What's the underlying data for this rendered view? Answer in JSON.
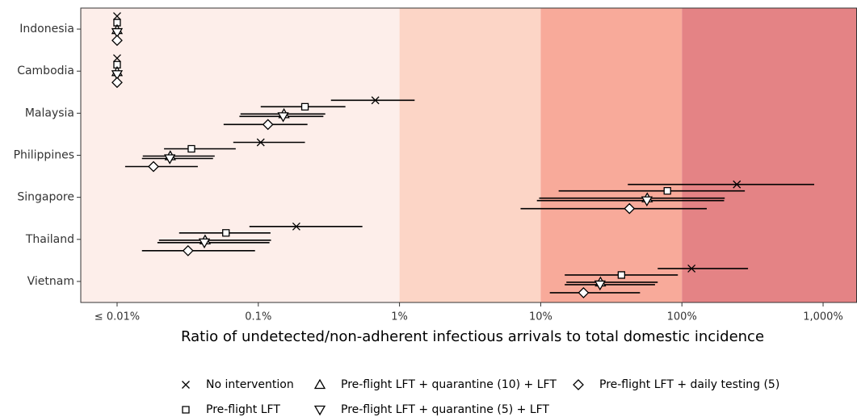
{
  "chart_data": {
    "type": "dot-range",
    "x_label": "Ratio of undetected/non-adherent infectious arrivals to total domestic incidence",
    "x_scale": "log",
    "xlim": [
      0.00553,
      1738
    ],
    "xticks": [
      {
        "value": 0.01,
        "label": "≤ 0.01%"
      },
      {
        "value": 0.1,
        "label": "0.1%"
      },
      {
        "value": 1,
        "label": "1%"
      },
      {
        "value": 10,
        "label": "10%"
      },
      {
        "value": 100,
        "label": "100%"
      },
      {
        "value": 1000,
        "label": "1,000%"
      }
    ],
    "bands": [
      {
        "from": 0.00553,
        "to": 1,
        "color": "#fdeeea"
      },
      {
        "from": 1,
        "to": 10,
        "color": "#fcd5c6"
      },
      {
        "from": 10,
        "to": 100,
        "color": "#f8aa9a"
      },
      {
        "from": 100,
        "to": 1738,
        "color": "#e48385"
      }
    ],
    "categories": [
      "Indonesia",
      "Cambodia",
      "Malaysia",
      "Philippines",
      "Singapore",
      "Thailand",
      "Vietnam"
    ],
    "series": [
      {
        "name": "No intervention",
        "marker": "x",
        "color": "#000000",
        "values": [
          0.01,
          0.01,
          0.674,
          0.104,
          245,
          0.186,
          117
        ],
        "lower": [
          null,
          null,
          0.327,
          0.0665,
          41.4,
          0.0865,
          67.4
        ],
        "upper": [
          null,
          null,
          1.28,
          0.214,
          865,
          0.546,
          294
        ]
      },
      {
        "name": "Pre-flight LFT",
        "marker": "square",
        "color": "#000000",
        "values": [
          0.01,
          0.01,
          0.214,
          0.0336,
          78.9,
          0.059,
          37.3
        ],
        "lower": [
          null,
          null,
          0.104,
          0.0215,
          13.4,
          0.0275,
          14.8
        ],
        "upper": [
          null,
          null,
          0.414,
          0.0692,
          279,
          0.122,
          93.6
        ]
      },
      {
        "name": "Pre-flight LFT + quarantine (10) + LFT",
        "marker": "triangle-up",
        "color": "#000000",
        "values": [
          0.01,
          0.01,
          0.152,
          0.0238,
          56.8,
          0.042,
          26.5
        ],
        "lower": [
          null,
          null,
          0.0748,
          0.0152,
          9.75,
          0.0198,
          15.2
        ],
        "upper": [
          null,
          null,
          0.298,
          0.0491,
          201,
          0.123,
          67.4
        ]
      },
      {
        "name": "Pre-flight LFT + quarantine (5) + LFT",
        "marker": "triangle-down",
        "color": "#000000",
        "values": [
          0.01,
          0.01,
          0.15,
          0.0236,
          56.5,
          0.0415,
          26.3
        ],
        "lower": [
          null,
          null,
          0.0735,
          0.015,
          9.4,
          0.0193,
          14.8
        ],
        "upper": [
          null,
          null,
          0.289,
          0.0478,
          199,
          0.12,
          64.5
        ]
      },
      {
        "name": "Pre-flight LFT + daily testing (5)",
        "marker": "diamond",
        "color": "#000000",
        "values": [
          0.01,
          0.01,
          0.117,
          0.0181,
          42.5,
          0.0318,
          20.1
        ],
        "lower": [
          null,
          null,
          0.0568,
          0.0114,
          7.2,
          0.015,
          11.6
        ],
        "upper": [
          null,
          null,
          0.223,
          0.0373,
          150,
          0.0948,
          50.5
        ]
      }
    ]
  }
}
